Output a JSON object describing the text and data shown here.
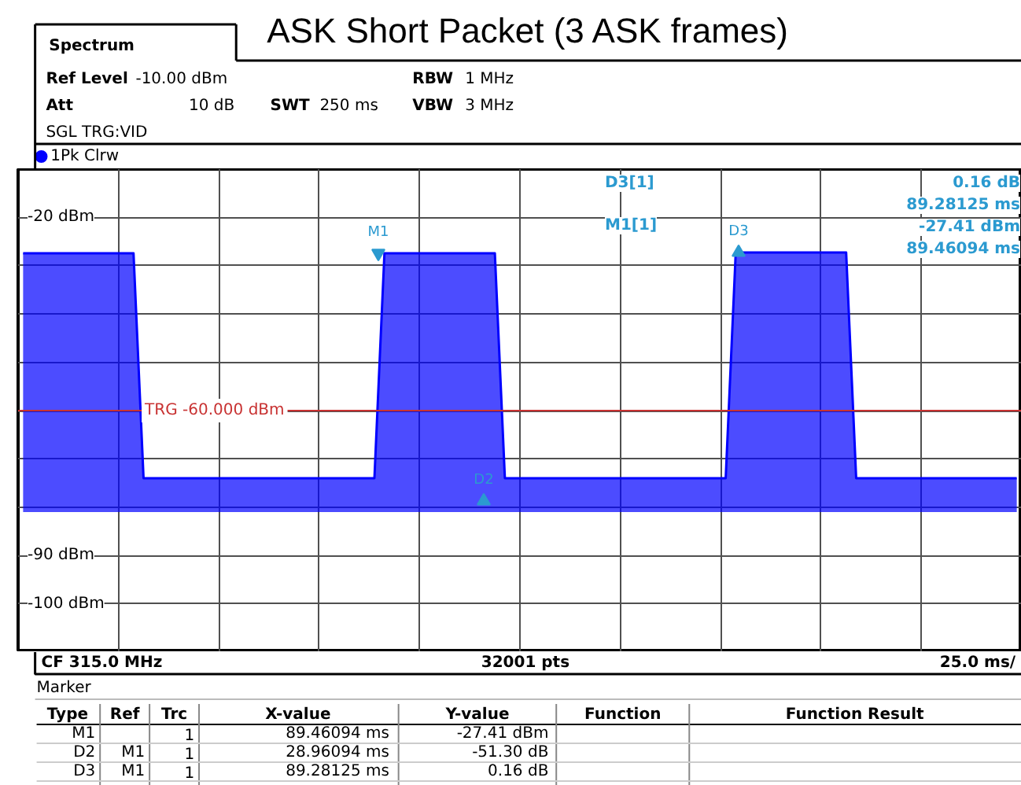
{
  "chart_data": {
    "type": "line",
    "title": "ASK Short Packet (3 ASK frames)",
    "categories": [
      null,
      null,
      null,
      null,
      null,
      null,
      null,
      null,
      null,
      null,
      null,
      null,
      null,
      null,
      null,
      null,
      null,
      null,
      null,
      null,
      null,
      null,
      null,
      null,
      null,
      null,
      null,
      null,
      null,
      null,
      null,
      null,
      null,
      null,
      null,
      null,
      null,
      null,
      null,
      null,
      null,
      null,
      null,
      null,
      null,
      null,
      null,
      null,
      null,
      null,
      null,
      null,
      null,
      null,
      null,
      null,
      null,
      null,
      null,
      null,
      null,
      null,
      null,
      null,
      null,
      null,
      null,
      null,
      null,
      null,
      null,
      null,
      null,
      null,
      null,
      null,
      null,
      null,
      null,
      null,
      null,
      null,
      null,
      null,
      null,
      null,
      null,
      null,
      null,
      null,
      null,
      null,
      null,
      null,
      null,
      null,
      null,
      null,
      null,
      null
    ],
    "ylim": [
      -110,
      -10
    ],
    "yticks": [
      {
        "value": -20,
        "label": "-20 dBm"
      },
      {
        "value": -30,
        "label": null
      },
      {
        "value": -40,
        "label": null
      },
      {
        "value": -50,
        "label": null
      },
      {
        "value": -60,
        "label": null
      },
      {
        "value": -70,
        "label": null
      },
      {
        "value": -80,
        "label": null
      },
      {
        "value": -90,
        "label": "-90 dBm"
      },
      {
        "value": -100,
        "label": "-100 dBm"
      }
    ],
    "tick_labels": "y",
    "grid": true,
    "legend": "top left",
    "line_style": "solid",
    "series": [
      {
        "name": "1Pk Clrw",
        "color": "#0000ff",
        "values": [
          -27.41,
          -27.41,
          -27.41,
          -27.41,
          -27.41,
          -27.41,
          -27.41,
          -27.41,
          -27.41,
          -27.41,
          -27.41,
          -27.41,
          -74,
          -74,
          -74,
          -74,
          -74,
          -74,
          -74,
          -74,
          -74,
          -74,
          -74,
          -74,
          -74,
          -74,
          -74,
          -74,
          -74,
          -74,
          -74,
          -74,
          -74,
          -74,
          -74,
          -74,
          -27.41,
          -27.41,
          -27.41,
          -27.41,
          -27.41,
          -27.41,
          -27.41,
          -27.41,
          -27.41,
          -27.41,
          -27.41,
          -27.41,
          -74,
          -74,
          -74,
          -74,
          -74,
          -74,
          -74,
          -74,
          -74,
          -74,
          -74,
          -74,
          -74,
          -74,
          -74,
          -74,
          -74,
          -74,
          -74,
          -74,
          -74,
          -74,
          -74,
          -27.25,
          -27.25,
          -27.25,
          -27.25,
          -27.25,
          -27.25,
          -27.25,
          -27.25,
          -27.25,
          -27.25,
          -27.25,
          -27.25,
          -74,
          -74,
          -74,
          -74,
          -74,
          -74,
          -74,
          -74,
          -74,
          -74,
          -74,
          -74,
          -74,
          -74,
          -74,
          -74,
          -74
        ],
        "lower": [
          -81,
          -81,
          -81,
          -81,
          -81,
          -81,
          -81,
          -81,
          -81,
          -81,
          -81,
          -81,
          -81,
          -81,
          -81,
          -81,
          -81,
          -81,
          -81,
          -81,
          -81,
          -81,
          -81,
          -81,
          -81,
          -81,
          -81,
          -81,
          -81,
          -81,
          -81,
          -81,
          -81,
          -81,
          -81,
          -81,
          -81,
          -81,
          -81,
          -81,
          -81,
          -81,
          -81,
          -81,
          -81,
          -81,
          -81,
          -81,
          -81,
          -81,
          -81,
          -81,
          -81,
          -81,
          -81,
          -81,
          -81,
          -81,
          -81,
          -81,
          -81,
          -81,
          -81,
          -81,
          -81,
          -81,
          -81,
          -81,
          -81,
          -81,
          -81,
          -81,
          -81,
          -81,
          -81,
          -81,
          -81,
          -81,
          -81,
          -81,
          -81,
          -81,
          -81,
          -81,
          -81,
          -81,
          -81,
          -81,
          -81,
          -81,
          -81,
          -81,
          -81,
          -81,
          -81,
          -81,
          -81,
          -81,
          -81,
          -81
        ],
        "upper": [
          -27.41,
          -27.41,
          -27.41,
          -27.41,
          -27.41,
          -27.41,
          -27.41,
          -27.41,
          -27.41,
          -27.41,
          -27.41,
          -27.41,
          -74,
          -74,
          -74,
          -74,
          -74,
          -74,
          -74,
          -74,
          -74,
          -74,
          -74,
          -74,
          -74,
          -74,
          -74,
          -74,
          -74,
          -74,
          -74,
          -74,
          -74,
          -74,
          -74,
          -74,
          -27.41,
          -27.41,
          -27.41,
          -27.41,
          -27.41,
          -27.41,
          -27.41,
          -27.41,
          -27.41,
          -27.41,
          -27.41,
          -27.41,
          -74,
          -74,
          -74,
          -74,
          -74,
          -74,
          -74,
          -74,
          -74,
          -74,
          -74,
          -74,
          -74,
          -74,
          -74,
          -74,
          -74,
          -74,
          -74,
          -74,
          -74,
          -74,
          -74,
          -27.25,
          -27.25,
          -27.25,
          -27.25,
          -27.25,
          -27.25,
          -27.25,
          -27.25,
          -27.25,
          -27.25,
          -27.25,
          -27.25,
          -74,
          -74,
          -74,
          -74,
          -74,
          -74,
          -74,
          -74,
          -74,
          -74,
          -74,
          -74,
          -74,
          -74,
          -74,
          -74,
          -74
        ]
      }
    ],
    "ref_lines": [
      {
        "axis": "y",
        "value": -60,
        "label": "TRG -60.000 dBm",
        "color": "#c83232"
      }
    ],
    "annotations": [
      "Spectrum",
      "Ref Level",
      "-10.00 dBm",
      "Att",
      "10 dB",
      "SWT",
      "250 ms",
      "RBW",
      "1 MHz",
      "VBW",
      "3 MHz",
      "SGL TRG:VID",
      "D3[1]",
      "0.16 dB",
      "89.28125 ms",
      "M1[1]",
      "-27.41 dBm",
      "89.46094 ms",
      "CF 315.0 MHz",
      "32001 pts",
      "25.0 ms/",
      "Marker",
      "Type",
      "Ref",
      "Trc",
      "X-value",
      "Y-value",
      "Function",
      "Function Result",
      "M1",
      "1",
      "89.46094 ms",
      "-27.41 dBm",
      "D2",
      "M1",
      "1",
      "28.96094 ms",
      "-51.30 dB",
      "D3",
      "M1",
      "1",
      "89.28125 ms",
      "0.16 dB",
      {
        "text": "M1",
        "y": -27.41
      },
      {
        "text": "D2",
        "y": -78.71
      },
      {
        "text": "D3",
        "y": -27.25
      }
    ]
  }
}
